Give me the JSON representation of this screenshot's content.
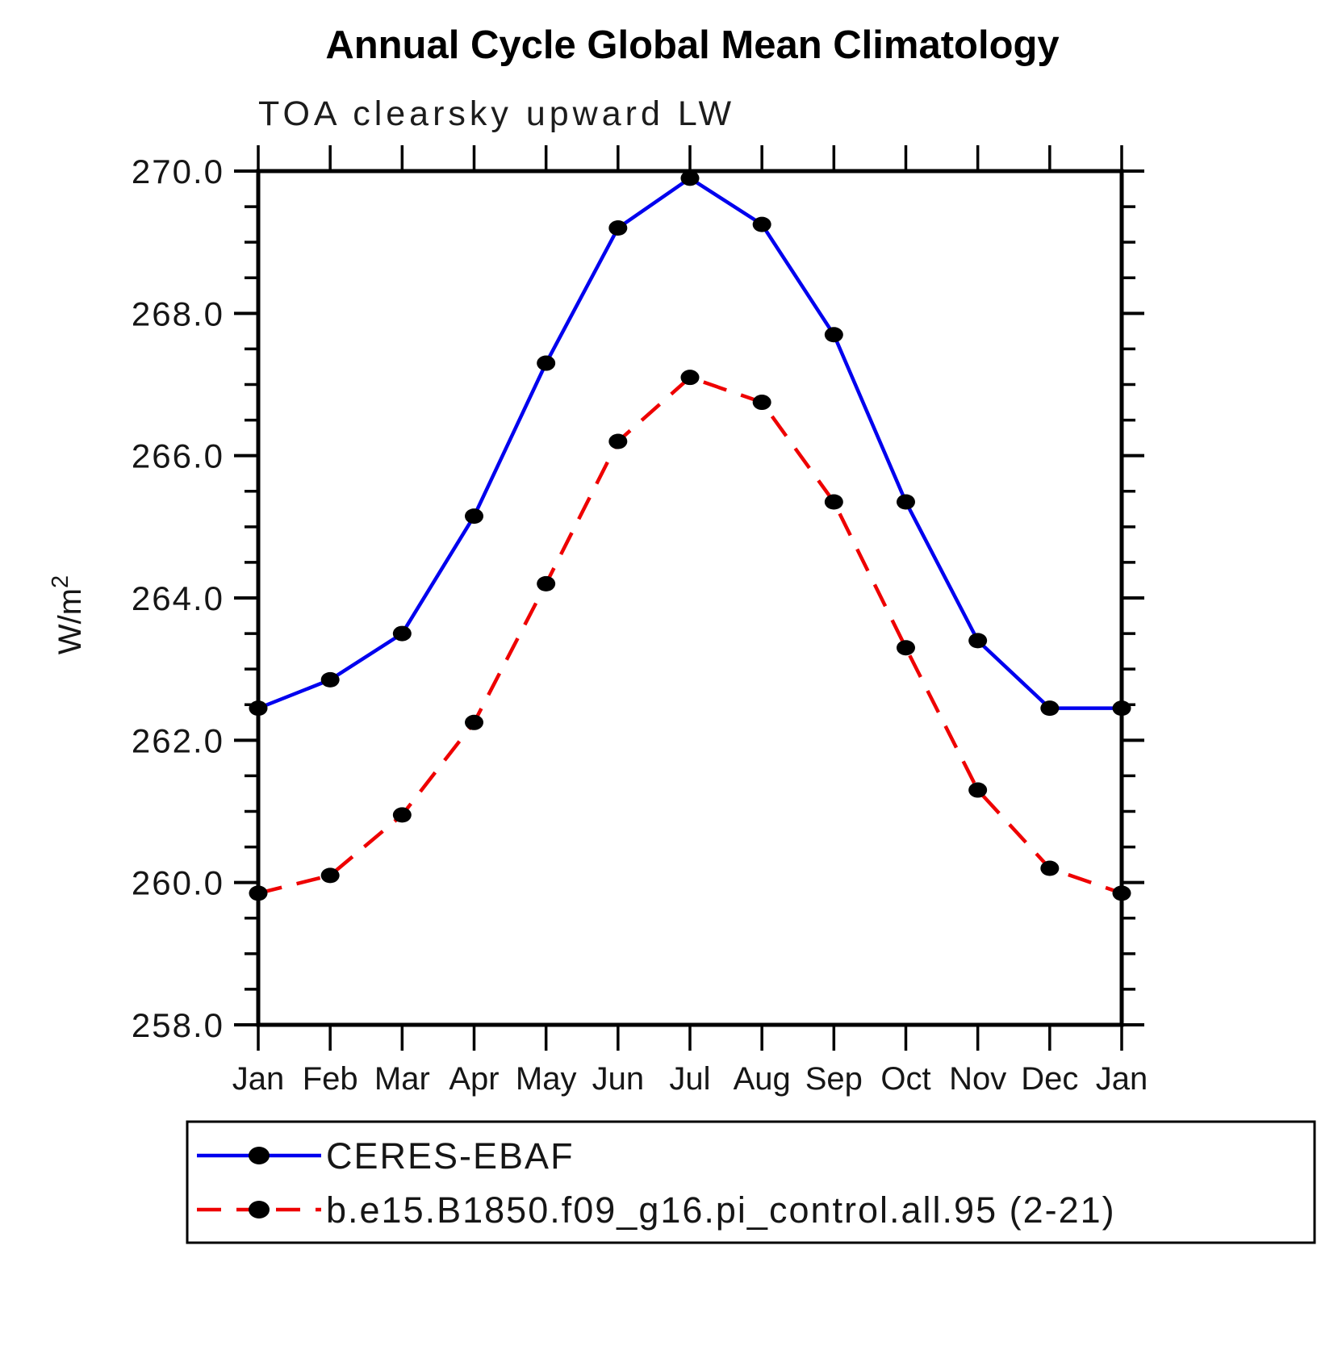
{
  "title": "Annual Cycle Global Mean Climatology",
  "subtitle": "TOA clearsky upward LW",
  "chart_data": {
    "type": "line",
    "title": "Annual Cycle Global Mean Climatology",
    "subtitle": "TOA clearsky upward LW",
    "ylabel": "W/m^2",
    "ylabel_base": "W/m",
    "ylabel_exp": "2",
    "categories": [
      "Jan",
      "Feb",
      "Mar",
      "Apr",
      "May",
      "Jun",
      "Jul",
      "Aug",
      "Sep",
      "Oct",
      "Nov",
      "Dec",
      "Jan"
    ],
    "ylim": [
      258.0,
      270.0
    ],
    "ytick_step": 2.0,
    "ytick_labels": [
      "258.0",
      "260.0",
      "262.0",
      "264.0",
      "266.0",
      "268.0",
      "270.0"
    ],
    "minor_tick_step": 0.5,
    "grid": false,
    "legend_position": "bottom",
    "series": [
      {
        "id": "ceres-ebaf",
        "name": "CERES-EBAF",
        "color": "#0000ee",
        "line_style": "solid",
        "marker": "circle",
        "marker_color": "#000000",
        "values": [
          262.45,
          262.85,
          263.5,
          265.15,
          267.3,
          269.2,
          269.9,
          269.25,
          267.7,
          265.35,
          263.4,
          262.45,
          262.45
        ]
      },
      {
        "id": "pi-control",
        "name": "b.e15.B1850.f09_g16.pi_control.all.95 (2-21)",
        "color": "#ee0000",
        "line_style": "dashed",
        "marker": "circle",
        "marker_color": "#000000",
        "values": [
          259.85,
          260.1,
          260.95,
          262.25,
          264.2,
          266.2,
          267.1,
          266.75,
          265.35,
          263.3,
          261.3,
          260.2,
          259.85
        ]
      }
    ]
  },
  "legend": {
    "entries": [
      {
        "label": "CERES-EBAF"
      },
      {
        "label": "b.e15.B1850.f09_g16.pi_control.all.95 (2-21)"
      }
    ]
  }
}
